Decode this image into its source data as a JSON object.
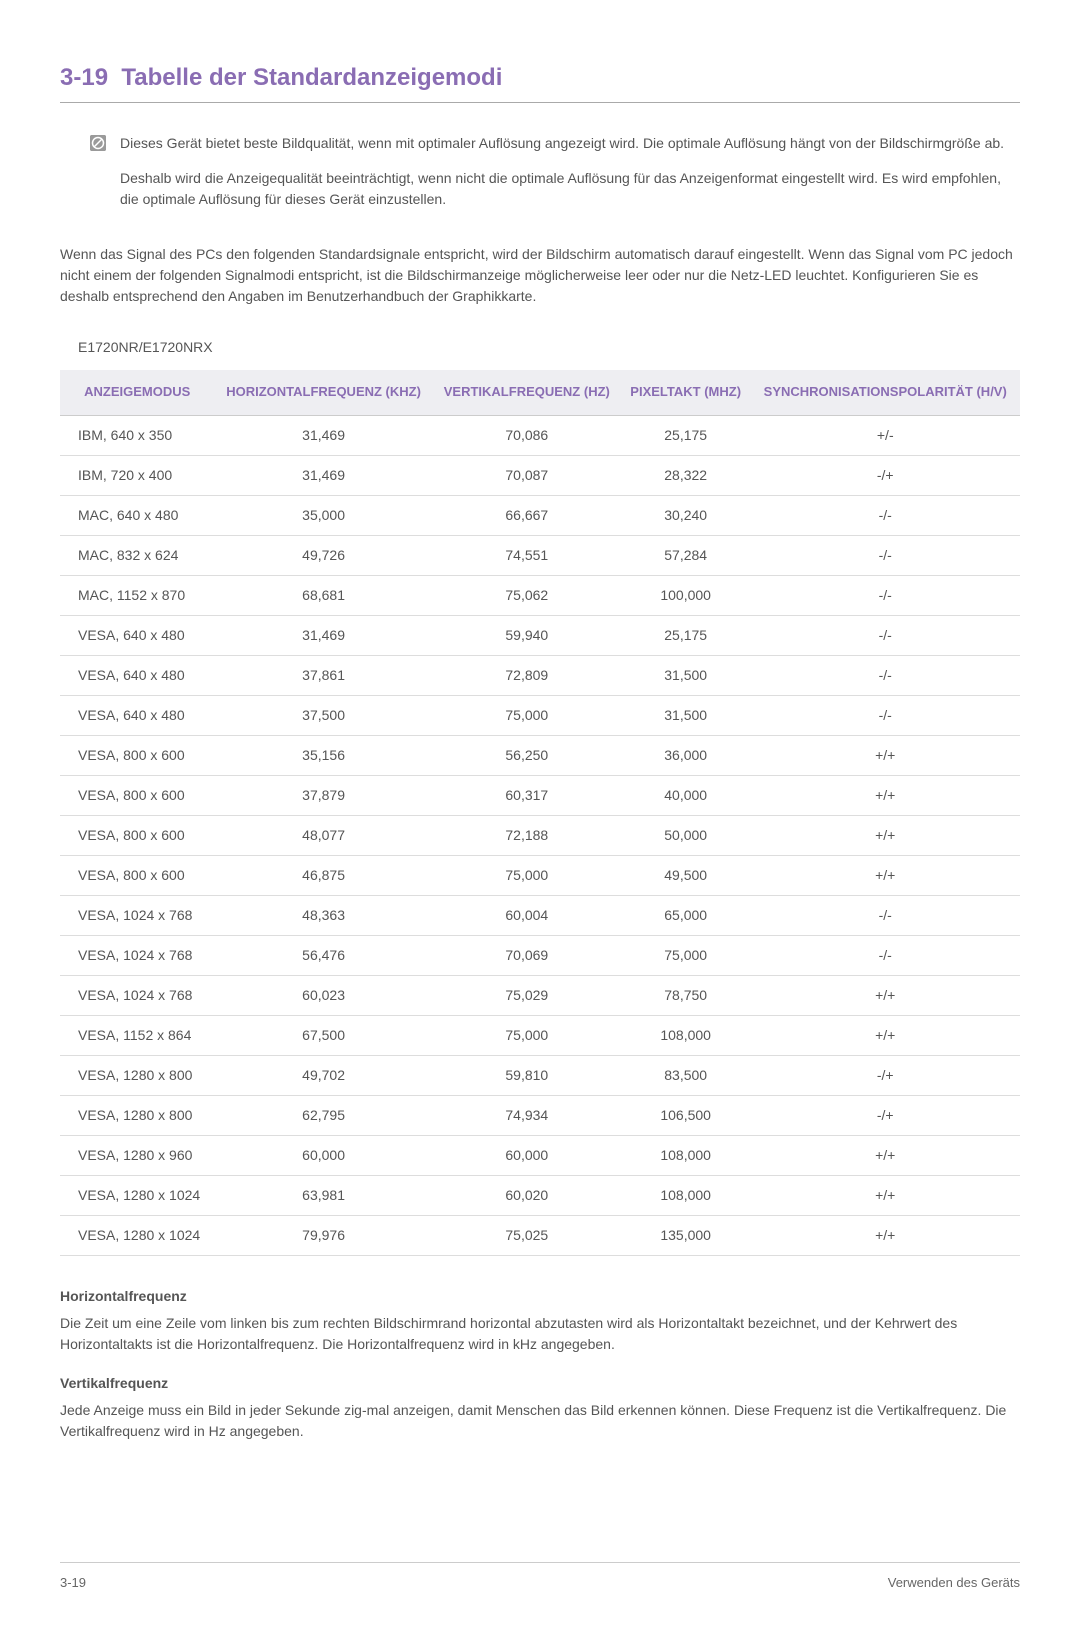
{
  "section": {
    "number": "3-19",
    "title": "Tabelle der Standardanzeigemodi"
  },
  "info": {
    "para1": "Dieses Gerät bietet beste Bildqualität, wenn mit optimaler Auflösung angezeigt wird. Die optimale Auflösung hängt von der Bildschirmgröße ab.",
    "para2": "Deshalb wird die Anzeigequalität beeinträchtigt, wenn nicht die optimale Auflösung für das Anzeigenformat eingestellt wird. Es wird empfohlen, die optimale Auflösung für dieses Gerät einzustellen."
  },
  "body_para": "Wenn das Signal des PCs den folgenden Standardsignale entspricht, wird der Bildschirm automatisch darauf eingestellt. Wenn das Signal vom PC jedoch nicht einem der folgenden Signalmodi entspricht, ist die Bildschirmanzeige möglicherweise leer oder nur die Netz-LED leuchtet. Konfigurieren Sie es deshalb entsprechend den Angaben im Benutzerhandbuch der Graphikkarte.",
  "model_label": "E1720NR/E1720NRX",
  "table": {
    "columns": [
      "ANZEIGEMODUS",
      "HORIZONTALFREQUENZ (KHZ)",
      "VERTIKALFREQUENZ (HZ)",
      "PIXELTAKT (MHZ)",
      "SYNCHRONISATIONSPOLARITÄT (H/V)"
    ],
    "rows": [
      [
        "IBM, 640 x 350",
        "31,469",
        "70,086",
        "25,175",
        "+/-"
      ],
      [
        "IBM, 720 x 400",
        "31,469",
        "70,087",
        "28,322",
        "-/+"
      ],
      [
        "MAC, 640 x 480",
        "35,000",
        "66,667",
        "30,240",
        "-/-"
      ],
      [
        "MAC, 832 x 624",
        "49,726",
        "74,551",
        "57,284",
        "-/-"
      ],
      [
        "MAC, 1152 x 870",
        "68,681",
        "75,062",
        "100,000",
        "-/-"
      ],
      [
        "VESA, 640 x 480",
        "31,469",
        "59,940",
        "25,175",
        "-/-"
      ],
      [
        "VESA, 640 x 480",
        "37,861",
        "72,809",
        "31,500",
        "-/-"
      ],
      [
        "VESA, 640 x 480",
        "37,500",
        "75,000",
        "31,500",
        "-/-"
      ],
      [
        "VESA, 800 x 600",
        "35,156",
        "56,250",
        "36,000",
        "+/+"
      ],
      [
        "VESA, 800 x 600",
        "37,879",
        "60,317",
        "40,000",
        "+/+"
      ],
      [
        "VESA, 800 x 600",
        "48,077",
        "72,188",
        "50,000",
        "+/+"
      ],
      [
        "VESA, 800 x 600",
        "46,875",
        "75,000",
        "49,500",
        "+/+"
      ],
      [
        "VESA, 1024 x 768",
        "48,363",
        "60,004",
        "65,000",
        "-/-"
      ],
      [
        "VESA, 1024 x 768",
        "56,476",
        "70,069",
        "75,000",
        "-/-"
      ],
      [
        "VESA, 1024 x 768",
        "60,023",
        "75,029",
        "78,750",
        "+/+"
      ],
      [
        "VESA, 1152 x 864",
        "67,500",
        "75,000",
        "108,000",
        "+/+"
      ],
      [
        "VESA, 1280 x 800",
        "49,702",
        "59,810",
        "83,500",
        "-/+"
      ],
      [
        "VESA, 1280 x 800",
        "62,795",
        "74,934",
        "106,500",
        "-/+"
      ],
      [
        "VESA, 1280 x 960",
        "60,000",
        "60,000",
        "108,000",
        "+/+"
      ],
      [
        "VESA, 1280 x 1024",
        "63,981",
        "60,020",
        "108,000",
        "+/+"
      ],
      [
        "VESA, 1280 x 1024",
        "79,976",
        "75,025",
        "135,000",
        "+/+"
      ]
    ]
  },
  "defs": {
    "hf_title": "Horizontalfrequenz",
    "hf_body": "Die Zeit um eine Zeile vom linken bis zum rechten Bildschirmrand horizontal abzutasten wird als Horizontaltakt bezeichnet, und der Kehrwert des Horizontaltakts ist die Horizontalfrequenz. Die Horizontalfrequenz wird in kHz angegeben.",
    "vf_title": "Vertikalfrequenz",
    "vf_body": "Jede Anzeige muss ein Bild in jeder Sekunde zig-mal anzeigen, damit Menschen das Bild erkennen können. Diese Frequenz ist die Vertikalfrequenz. Die Vertikalfrequenz wird in Hz angegeben."
  },
  "footer": {
    "left": "3-19",
    "right": "Verwenden des Geräts"
  }
}
